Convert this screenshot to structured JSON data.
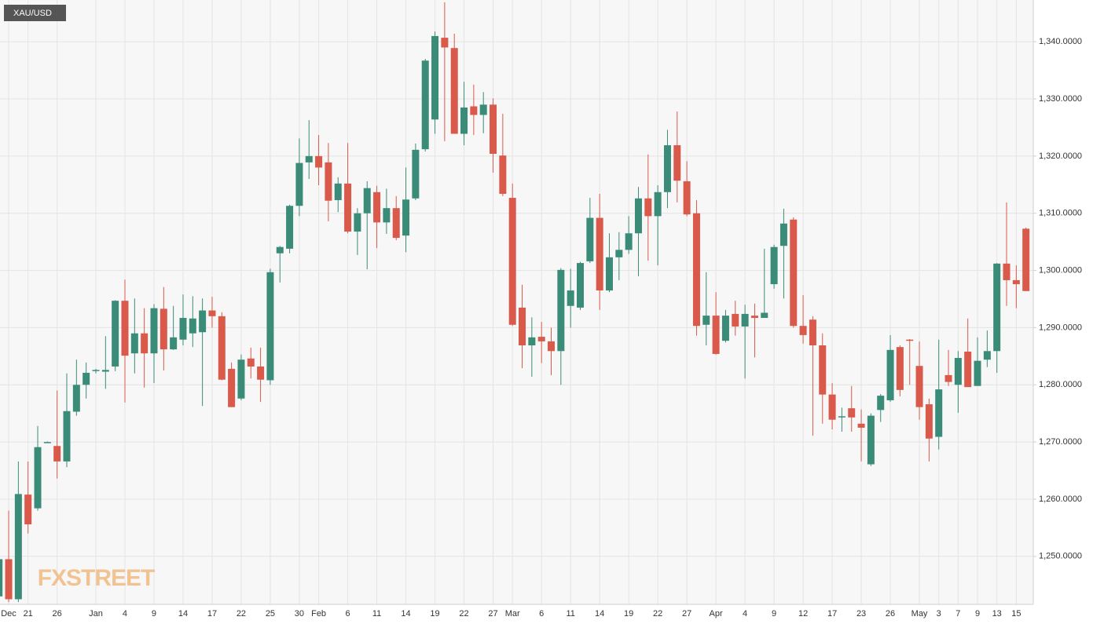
{
  "chart_data": {
    "type": "candlestick",
    "title": "XAU/USD",
    "watermark": "FXSTREET",
    "up_color": "#3a8c78",
    "down_color": "#d9594a",
    "grid": true,
    "categories": [
      null,
      "Dec",
      null,
      "21",
      null,
      null,
      "26",
      null,
      null,
      null,
      "Jan",
      null,
      null,
      "4",
      null,
      null,
      "9",
      null,
      null,
      "14",
      null,
      null,
      "17",
      null,
      null,
      "22",
      null,
      null,
      "25",
      null,
      null,
      "30",
      null,
      "Feb",
      null,
      null,
      "6",
      null,
      null,
      "11",
      null,
      null,
      "14",
      null,
      null,
      "19",
      null,
      null,
      "22",
      null,
      null,
      "27",
      null,
      "Mar",
      null,
      null,
      "6",
      null,
      null,
      "11",
      null,
      null,
      "14",
      null,
      null,
      "19",
      null,
      null,
      "22",
      null,
      null,
      "27",
      null,
      null,
      "Apr",
      null,
      null,
      "4",
      null,
      null,
      "9",
      null,
      null,
      "12",
      null,
      null,
      "17",
      null,
      null,
      "23",
      null,
      null,
      "26",
      null,
      null,
      "May",
      null,
      "3",
      null,
      "7",
      null,
      "9",
      null,
      "13",
      null,
      "15",
      null
    ],
    "open": [
      1243,
      1249.5,
      1242.5,
      1260.8,
      1258.4,
      1270,
      1269.3,
      1266.6,
      1275.3,
      1280,
      1282.4,
      1282.3,
      1283.2,
      1294.7,
      1285.5,
      1289,
      1285.5,
      1293.3,
      1286.2,
      1287.9,
      1289,
      1289.2,
      1293,
      1292,
      1282.8,
      1277.6,
      1284.6,
      1283.2,
      1280.8,
      1303,
      1303.8,
      1311.3,
      1318.9,
      1320,
      1318.9,
      1312.3,
      1315.2,
      1306.8,
      1310,
      1313.7,
      1308.4,
      1310.9,
      1306.1,
      1312.6,
      1321.2,
      1326.4,
      1340.7,
      1338.9,
      1323.9,
      1328.7,
      1327.2,
      1329,
      1320.1,
      1312.7,
      1293.5,
      1286.9,
      1288.4,
      1287.6,
      1285.9,
      1293.8,
      1293.5,
      1301.6,
      1309.2,
      1296.5,
      1302.3,
      1303.6,
      1306.5,
      1312.6,
      1309.5,
      1313.7,
      1321.9,
      1315.6,
      1310,
      1290.5,
      1292.1,
      1287.7,
      1292.4,
      1290.2,
      1292.1,
      1291.7,
      1297.6,
      1304.3,
      1308.9,
      1290.3,
      1291.4,
      1286.9,
      1278.3,
      1274.4,
      1275.9,
      1273.2,
      1266.1,
      1275.6,
      1277.3,
      1286.6,
      1287.9,
      1283.3,
      1276.6,
      1270.9,
      1281.7,
      1280,
      1285.8,
      1279.8,
      1284.4,
      1285.9,
      1301.2,
      1298.3,
      1307.3
    ],
    "high": [
      1251,
      1258,
      1266.6,
      1266.6,
      1272.8,
      1270.1,
      1279,
      1282,
      1284.4,
      1283.9,
      1282.8,
      1288.5,
      1294.8,
      1298.4,
      1295.1,
      1293.4,
      1294.1,
      1297.1,
      1293.8,
      1295.8,
      1295.5,
      1295.1,
      1295.4,
      1292.7,
      1283.9,
      1285.3,
      1286.5,
      1286.5,
      1300.3,
      1304.3,
      1311.5,
      1323.1,
      1326.3,
      1323.7,
      1322.3,
      1316.3,
      1322.3,
      1310.9,
      1315.6,
      1314.8,
      1314.3,
      1313,
      1318,
      1322.2,
      1337,
      1341.8,
      1346.9,
      1341.4,
      1333,
      1332.5,
      1331.2,
      1330.1,
      1327.4,
      1315.2,
      1297.5,
      1291.8,
      1291,
      1290,
      1300.4,
      1300.3,
      1301.5,
      1312.7,
      1313.4,
      1306.5,
      1306.7,
      1309.5,
      1314.6,
      1320.3,
      1314.9,
      1324.6,
      1327.8,
      1319.1,
      1312.3,
      1299.7,
      1296.2,
      1293.1,
      1294.7,
      1294,
      1294.2,
      1303.8,
      1304.5,
      1310.8,
      1309.3,
      1295.7,
      1292,
      1289,
      1280.3,
      1276,
      1279.8,
      1275.7,
      1275,
      1278.4,
      1288.7,
      1286.9,
      1288,
      1287.6,
      1277.6,
      1287.9,
      1286.1,
      1285.9,
      1291.6,
      1288.3,
      1289.5,
      1301.3,
      1311.9,
      1300.9,
      1307.5
    ],
    "low": [
      1242,
      1242,
      1242,
      1254,
      1258,
      1269.9,
      1263.6,
      1265.6,
      1274.6,
      1277.6,
      1282,
      1279.3,
      1282.4,
      1276.9,
      1282,
      1279.5,
      1280.3,
      1282.5,
      1286.1,
      1286.9,
      1286.6,
      1276.3,
      1290,
      1280.8,
      1276.1,
      1277.3,
      1281.1,
      1277,
      1280,
      1297.9,
      1303,
      1309.5,
      1316,
      1314.9,
      1308.6,
      1310.2,
      1306.5,
      1302.7,
      1300.2,
      1303.9,
      1306.4,
      1305.3,
      1303.2,
      1312.3,
      1320.8,
      1323.9,
      1322.6,
      1323.9,
      1321.9,
      1323.7,
      1324,
      1317.1,
      1313,
      1290.3,
      1282.9,
      1281.4,
      1283.8,
      1281.7,
      1280,
      1290,
      1293.1,
      1301.3,
      1293.1,
      1296.2,
      1298.3,
      1302.9,
      1299,
      1301.7,
      1300.9,
      1310.9,
      1311.9,
      1309.5,
      1288.6,
      1286.9,
      1285.3,
      1287.4,
      1288.6,
      1281.1,
      1284.8,
      1291.7,
      1296.8,
      1295.1,
      1290,
      1287.2,
      1271.1,
      1273.2,
      1272.2,
      1271.8,
      1271.8,
      1266.6,
      1265.8,
      1273.5,
      1277,
      1278,
      1280,
      1273.9,
      1266.6,
      1268.7,
      1279.8,
      1275.1,
      1279.6,
      1279.8,
      1283.1,
      1282.1,
      1293.8,
      1293.4,
      1296.4
    ],
    "close": [
      1249.5,
      1242.5,
      1260.9,
      1255.6,
      1269.1,
      1270,
      1266.6,
      1275.4,
      1280,
      1282.1,
      1282.6,
      1282.6,
      1294.7,
      1285.1,
      1289,
      1285.5,
      1293.4,
      1286.2,
      1288.3,
      1291.7,
      1291.6,
      1293,
      1292,
      1280.9,
      1276.1,
      1284.4,
      1283.2,
      1280.9,
      1299.7,
      1304.1,
      1311.3,
      1318.8,
      1320,
      1318,
      1312.2,
      1315.2,
      1306.8,
      1310,
      1314.4,
      1308.4,
      1310.9,
      1305.7,
      1312.4,
      1321.1,
      1336.7,
      1341,
      1339,
      1323.9,
      1328.5,
      1327.2,
      1329,
      1320.4,
      1313.4,
      1290.5,
      1286.9,
      1288.3,
      1287.6,
      1285.9,
      1300.1,
      1296.5,
      1301.3,
      1309.2,
      1296.5,
      1302.3,
      1303.6,
      1306.5,
      1312.6,
      1309.5,
      1313.7,
      1321.9,
      1315.7,
      1309.8,
      1290.3,
      1292.1,
      1285.4,
      1292.1,
      1290.2,
      1292.4,
      1291.7,
      1292.6,
      1304.1,
      1308.2,
      1290.3,
      1288.7,
      1286.9,
      1278.3,
      1273.9,
      1274.5,
      1274.3,
      1272.5,
      1274.6,
      1278.1,
      1286.1,
      1279.1,
      1287.8,
      1276.1,
      1270.6,
      1279.2,
      1280.5,
      1284.7,
      1279.6,
      1284.2,
      1285.9,
      1301.2,
      1298.3,
      1297.6,
      1296.4
    ],
    "ylim": [
      1241.6,
      1347.3
    ],
    "yticks": [
      {
        "value": 1250,
        "label": "1,250.0000"
      },
      {
        "value": 1260,
        "label": "1,260.0000"
      },
      {
        "value": 1270,
        "label": "1,270.0000"
      },
      {
        "value": 1280,
        "label": "1,280.0000"
      },
      {
        "value": 1290,
        "label": "1,290.0000"
      },
      {
        "value": 1300,
        "label": "1,300.0000"
      },
      {
        "value": 1310,
        "label": "1,310.0000"
      },
      {
        "value": 1320,
        "label": "1,320.0000"
      },
      {
        "value": 1330,
        "label": "1,330.0000"
      },
      {
        "value": 1340,
        "label": "1,340.0000"
      }
    ]
  }
}
